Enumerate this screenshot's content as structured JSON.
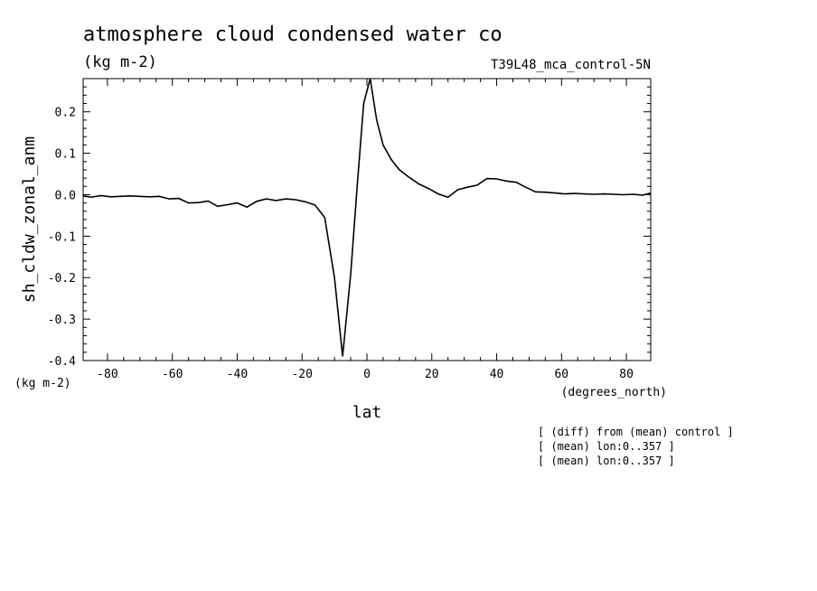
{
  "chart_data": {
    "type": "line",
    "title": "atmosphere cloud condensed water co",
    "units": "(kg m-2)",
    "run_label": "T39L48_mca_control-5N",
    "ylabel": "sh_cldw_zonal_anm",
    "xlabel": "lat",
    "x_units": "(degrees_north)",
    "y_units": "(kg m-2)",
    "xlim": [
      -87.5,
      87.5
    ],
    "ylim": [
      -0.4,
      0.28
    ],
    "x_ticks": [
      -80,
      -60,
      -40,
      -20,
      0,
      20,
      40,
      60,
      80
    ],
    "y_ticks": [
      -0.4,
      -0.3,
      -0.2,
      -0.1,
      0.0,
      0.1,
      0.2
    ],
    "x_tick_labels": [
      "-80",
      "-60",
      "-40",
      "-20",
      "0",
      "20",
      "40",
      "60",
      "80"
    ],
    "y_tick_labels": [
      "-0.4",
      "-0.3",
      "-0.2",
      "-0.1",
      "0.0",
      "0.1",
      "0.2"
    ],
    "notes": [
      "[ (diff) from (mean) control ]",
      "[ (mean) lon:0..357 ]",
      "[ (mean) lon:0..357 ]"
    ],
    "series": [
      {
        "x": [
          -87.5,
          -85,
          -82,
          -79,
          -76,
          -73,
          -70,
          -67,
          -64,
          -61,
          -58,
          -55,
          -52,
          -49,
          -46,
          -43,
          -40,
          -37,
          -34,
          -31,
          -28,
          -25,
          -22,
          -19,
          -16,
          -13,
          -10,
          -7.5,
          -5,
          -3,
          -1,
          1,
          3,
          5,
          7.5,
          10,
          13,
          16,
          19,
          22,
          25,
          28,
          31,
          34,
          37,
          40,
          43,
          46,
          49,
          52,
          55,
          58,
          61,
          64,
          67,
          70,
          73,
          76,
          79,
          82,
          85,
          87.5
        ],
        "y": [
          -0.003,
          -0.006,
          -0.002,
          -0.005,
          -0.004,
          -0.003,
          -0.004,
          -0.005,
          -0.004,
          -0.01,
          -0.009,
          -0.02,
          -0.019,
          -0.015,
          -0.028,
          -0.024,
          -0.02,
          -0.03,
          -0.016,
          -0.01,
          -0.014,
          -0.01,
          -0.012,
          -0.017,
          -0.025,
          -0.055,
          -0.2,
          -0.39,
          -0.19,
          0.02,
          0.22,
          0.28,
          0.18,
          0.12,
          0.085,
          0.06,
          0.042,
          0.026,
          0.015,
          0.002,
          -0.006,
          0.012,
          0.018,
          0.023,
          0.039,
          0.038,
          0.033,
          0.03,
          0.018,
          0.007,
          0.006,
          0.004,
          0.002,
          0.003,
          0.002,
          0.001,
          0.002,
          0.001,
          0.0,
          0.001,
          -0.001,
          0.004
        ]
      }
    ]
  }
}
